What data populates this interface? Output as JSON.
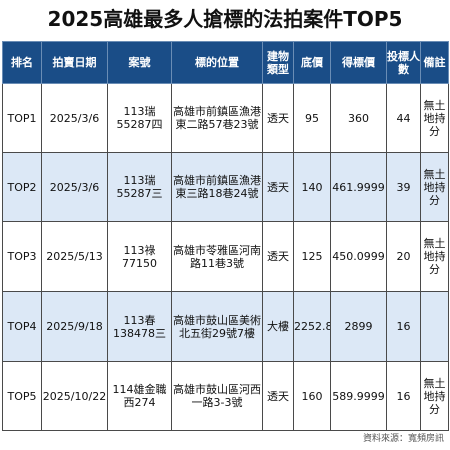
{
  "title": "2025高雄最多人搶標的法拍案件TOP5",
  "headers": [
    "排名",
    "拍賣日期",
    "案號",
    "標的位置",
    "建物類型",
    "底價",
    "得標價",
    "投標人數",
    "備註"
  ],
  "rows": [
    {
      "rank": "TOP1",
      "date": "2025/3/6",
      "case": "113瑞55287四",
      "location": "高雄市前鎮區漁港東二路57巷23號",
      "type": "透天",
      "base": "95",
      "price": "360",
      "bidders": "44",
      "note": "無土地持分"
    },
    {
      "rank": "TOP2",
      "date": "2025/3/6",
      "case": "113瑞55287三",
      "location": "高雄市前鎮區漁港東三路18巷24號",
      "type": "透天",
      "base": "140",
      "price": "461.9999",
      "bidders": "39",
      "note": "無土地持分"
    },
    {
      "rank": "TOP3",
      "date": "2025/5/13",
      "case": "113祿77150",
      "location": "高雄市苓雅區河南路11巷3號",
      "type": "透天",
      "base": "125",
      "price": "450.0999",
      "bidders": "20",
      "note": "無土地持分"
    },
    {
      "rank": "TOP4",
      "date": "2025/9/18",
      "case": "113春138478三",
      "location": "高雄市鼓山區美術北五街29號7樓",
      "type": "大樓",
      "base": "2252.8",
      "price": "2899",
      "bidders": "16",
      "note": ""
    },
    {
      "rank": "TOP5",
      "date": "2025/10/22",
      "case": "114雄金職西274",
      "location": "高雄市鼓山區河西一路3-3號",
      "type": "透天",
      "base": "160",
      "price": "589.9999",
      "bidders": "16",
      "note": "無土地持分"
    }
  ],
  "source": "資料來源：寬頻房訊"
}
